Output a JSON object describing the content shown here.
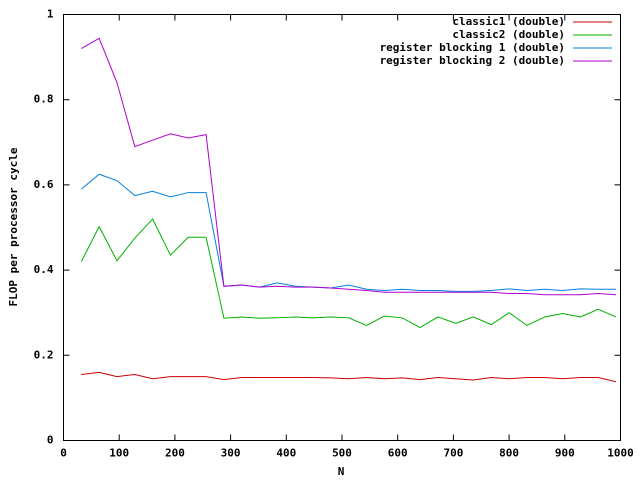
{
  "chart_data": {
    "type": "line",
    "x_label": "N",
    "y_label": "FLOP per processor cycle",
    "x": [
      32,
      64,
      96,
      128,
      160,
      192,
      224,
      256,
      288,
      320,
      352,
      384,
      416,
      448,
      480,
      512,
      544,
      576,
      608,
      640,
      672,
      704,
      736,
      768,
      800,
      832,
      864,
      896,
      928,
      960,
      992
    ],
    "series": [
      {
        "name": "classic1 (double)",
        "color": "#cc0000",
        "values": [
          0.155,
          0.16,
          0.15,
          0.155,
          0.145,
          0.15,
          0.15,
          0.15,
          0.143,
          0.148,
          0.148,
          0.148,
          0.148,
          0.148,
          0.147,
          0.145,
          0.148,
          0.145,
          0.147,
          0.143,
          0.148,
          0.145,
          0.142,
          0.148,
          0.145,
          0.148,
          0.148,
          0.145,
          0.148,
          0.148,
          0.138
        ]
      },
      {
        "name": "classic2 (double)",
        "color": "#00b000",
        "values": [
          0.42,
          0.502,
          0.422,
          0.475,
          0.52,
          0.435,
          0.477,
          0.477,
          0.287,
          0.29,
          0.287,
          0.288,
          0.29,
          0.288,
          0.29,
          0.288,
          0.27,
          0.292,
          0.288,
          0.265,
          0.29,
          0.275,
          0.29,
          0.272,
          0.3,
          0.27,
          0.29,
          0.298,
          0.29,
          0.308,
          0.29
        ]
      },
      {
        "name": "register blocking 1 (double)",
        "color": "#0080e0",
        "values": [
          0.59,
          0.625,
          0.61,
          0.575,
          0.585,
          0.572,
          0.582,
          0.582,
          0.362,
          0.365,
          0.36,
          0.37,
          0.362,
          0.36,
          0.358,
          0.365,
          0.355,
          0.352,
          0.355,
          0.352,
          0.352,
          0.35,
          0.35,
          0.352,
          0.356,
          0.352,
          0.355,
          0.352,
          0.356,
          0.355,
          0.355
        ]
      },
      {
        "name": "register blocking 2 (double)",
        "color": "#b000d0",
        "values": [
          0.92,
          0.944,
          0.84,
          0.69,
          0.705,
          0.72,
          0.71,
          0.718,
          0.362,
          0.365,
          0.36,
          0.362,
          0.36,
          0.36,
          0.358,
          0.355,
          0.352,
          0.348,
          0.348,
          0.348,
          0.348,
          0.348,
          0.348,
          0.348,
          0.345,
          0.345,
          0.342,
          0.342,
          0.342,
          0.345,
          0.342
        ]
      }
    ],
    "xlim": [
      0,
      1000
    ],
    "xticks": [
      0,
      100,
      200,
      300,
      400,
      500,
      600,
      700,
      800,
      900,
      1000
    ],
    "ylim": [
      0,
      1
    ],
    "yticks": [
      0,
      0.2,
      0.4,
      0.6,
      0.8,
      1
    ],
    "legend": "top-right"
  }
}
